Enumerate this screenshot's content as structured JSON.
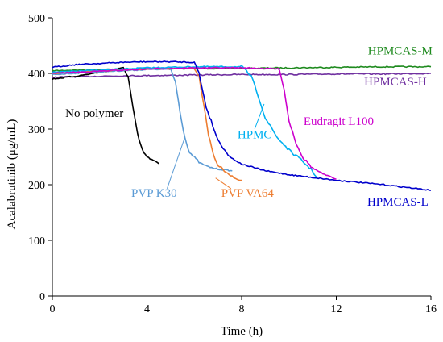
{
  "chart_data": {
    "type": "line",
    "xlabel": "Time (h)",
    "ylabel": "Acalabrutinib (μg/mL)",
    "xlim": [
      0,
      16
    ],
    "ylim": [
      0,
      500
    ],
    "xticks": [
      0,
      4,
      8,
      12,
      16
    ],
    "yticks": [
      0,
      100,
      200,
      300,
      400,
      500
    ],
    "grid": false,
    "legend": "inline labels",
    "series": [
      {
        "name": "HPMCAS-M",
        "color": "#1E8A1E",
        "x": [
          0,
          2,
          4,
          6,
          8,
          10,
          12,
          14,
          16
        ],
        "y": [
          405,
          407,
          408,
          409,
          409,
          410,
          411,
          412,
          412
        ]
      },
      {
        "name": "HPMCAS-H",
        "color": "#7030A0",
        "x": [
          0,
          2,
          4,
          6,
          8,
          10,
          12,
          14,
          16
        ],
        "y": [
          393,
          395,
          396,
          397,
          398,
          398,
          399,
          399,
          400
        ]
      },
      {
        "name": "No polymer",
        "color": "#000000",
        "x": [
          0,
          1,
          2,
          2.5,
          3,
          3.2,
          3.4,
          3.6,
          3.8,
          4.0,
          4.2,
          4.5
        ],
        "y": [
          390,
          395,
          402,
          406,
          410,
          395,
          340,
          290,
          262,
          250,
          245,
          238
        ]
      },
      {
        "name": "PVP K30",
        "color": "#5B9BD5",
        "x": [
          0,
          2,
          4,
          5.0,
          5.2,
          5.4,
          5.6,
          5.8,
          6.2,
          6.6,
          7.0,
          7.4,
          7.6
        ],
        "y": [
          398,
          403,
          407,
          408,
          385,
          330,
          285,
          258,
          240,
          232,
          228,
          226,
          225
        ]
      },
      {
        "name": "PVP VA64",
        "color": "#ED7D31",
        "x": [
          0,
          2,
          4,
          6,
          6.2,
          6.4,
          6.6,
          6.8,
          7.0,
          7.4,
          7.8,
          8.0
        ],
        "y": [
          400,
          405,
          408,
          410,
          395,
          345,
          290,
          255,
          235,
          220,
          210,
          208
        ]
      },
      {
        "name": "HPMC",
        "color": "#00B0F0",
        "x": [
          0,
          2,
          4,
          6,
          8,
          8.4,
          8.7,
          9.0,
          9.5,
          10.0,
          10.5,
          11.0,
          11.2
        ],
        "y": [
          402,
          406,
          410,
          412,
          412,
          395,
          360,
          320,
          285,
          262,
          245,
          225,
          210
        ]
      },
      {
        "name": "Eudragit L100",
        "color": "#CC00CC",
        "x": [
          0,
          2,
          4,
          6,
          8,
          9.6,
          9.8,
          10.0,
          10.3,
          10.6,
          11.0,
          11.5,
          12.0
        ],
        "y": [
          400,
          404,
          408,
          410,
          410,
          408,
          370,
          315,
          275,
          248,
          230,
          218,
          210
        ]
      },
      {
        "name": "HPMCAS-L",
        "color": "#0000CC",
        "x": [
          0,
          1,
          2,
          3,
          4,
          5,
          6,
          6.2,
          6.5,
          7.0,
          7.5,
          8,
          9,
          10,
          12,
          14,
          16
        ],
        "y": [
          411,
          416,
          418,
          420,
          421,
          421,
          420,
          400,
          340,
          280,
          250,
          237,
          225,
          218,
          208,
          200,
          190
        ]
      }
    ],
    "labels": [
      {
        "text": "HPMCAS-M",
        "series": "HPMCAS-M"
      },
      {
        "text": "HPMCAS-H",
        "series": "HPMCAS-H"
      },
      {
        "text": "No polymer",
        "series": "No polymer"
      },
      {
        "text": "PVP K30",
        "series": "PVP K30"
      },
      {
        "text": "PVP VA64",
        "series": "PVP VA64"
      },
      {
        "text": "HPMC",
        "series": "HPMC"
      },
      {
        "text": "Eudragit L100",
        "series": "Eudragit L100"
      },
      {
        "text": "HPMCAS-L",
        "series": "HPMCAS-L"
      }
    ]
  }
}
